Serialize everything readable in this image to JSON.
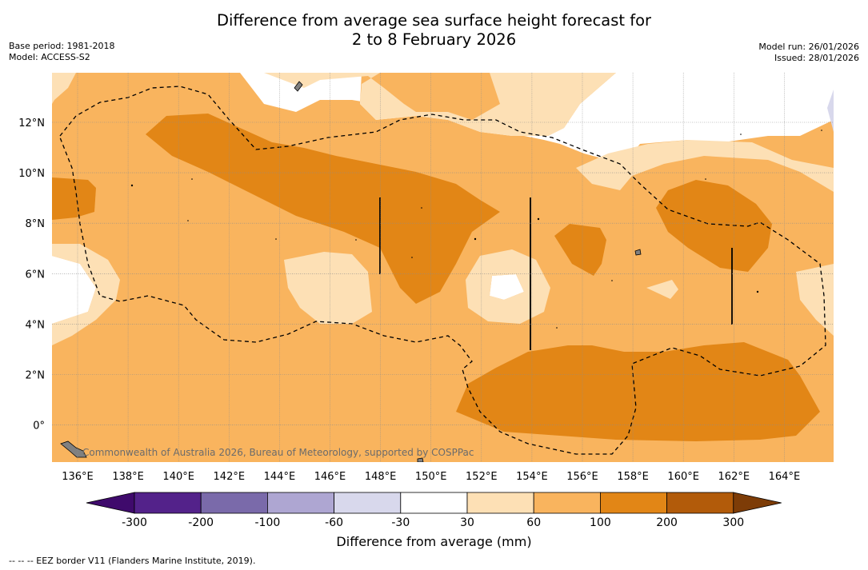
{
  "header": {
    "title_line1": "Difference from average sea surface height forecast for",
    "title_line2": "2 to 8 February 2026",
    "base_period": "Base period: 1981-2018",
    "model": "Model: ACCESS-S2",
    "model_run": "Model run: 26/01/2026",
    "issued": "Issued: 28/01/2026"
  },
  "map": {
    "longitude_labels": [
      "136°E",
      "138°E",
      "140°E",
      "142°E",
      "144°E",
      "146°E",
      "148°E",
      "150°E",
      "152°E",
      "154°E",
      "156°E",
      "158°E",
      "160°E",
      "162°E",
      "164°E"
    ],
    "latitude_labels": [
      "12°N",
      "10°N",
      "8°N",
      "6°N",
      "4°N",
      "2°N",
      "0°"
    ],
    "copyright": "Commonwealth of Australia 2026, Bureau of Meteorology, supported by COSPPac",
    "colors": {
      "band_30_60": "#fde0b5",
      "band_60_100": "#f9b45e",
      "band_100_200": "#e28616",
      "land": "#808080",
      "grid": "#8c8c8c"
    }
  },
  "colorbar": {
    "title": "Difference from average (mm)",
    "tick_labels": [
      "-300",
      "-200",
      "-100",
      "-60",
      "-30",
      "30",
      "60",
      "100",
      "200",
      "300"
    ],
    "colors": [
      "#3f0a6c",
      "#53228a",
      "#7a6aaa",
      "#aea6d2",
      "#d8d8ec",
      "#ffffff",
      "#fde0b5",
      "#f9b45e",
      "#e28616",
      "#b25b0a",
      "#7d3c07"
    ]
  },
  "footnote": "-- -- -- EEZ border V11 (Flanders Marine Institute, 2019)."
}
